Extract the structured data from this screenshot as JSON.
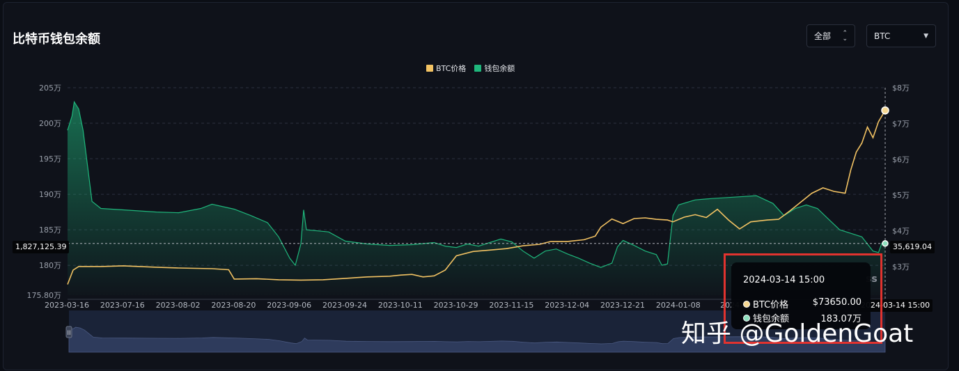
{
  "header": {
    "title": "比特币钱包余额"
  },
  "controls": {
    "range_label": "全部",
    "asset_label": "BTC"
  },
  "legend": [
    {
      "label": "BTC价格",
      "color": "#f3c363"
    },
    {
      "label": "钱包余额",
      "color": "#1fb77c"
    }
  ],
  "crosshair": {
    "left_value": "1,827,125.39",
    "right_value": "35,619.04",
    "date_value": "2024-03-14 15:00"
  },
  "tooltip": {
    "date": "2024-03-14 15:00",
    "price_label": "BTC价格",
    "price_value": "$73650.00",
    "balance_label": "钱包余额",
    "balance_value": "183.07万"
  },
  "watermark": "知乎 @GoldenGoat",
  "chart_data": {
    "type": "line",
    "x_tick_labels": [
      "2023-03-16",
      "2023-07-16",
      "2023-08-02",
      "2023-08-20",
      "2023-09-06",
      "2023-09-24",
      "2023-10-11",
      "2023-10-29",
      "2023-11-15",
      "2023-12-04",
      "2023-12-21",
      "2024-01-08",
      "2024-0"
    ],
    "y_left_ticks": [
      "205万",
      "200万",
      "195万",
      "190万",
      "185万",
      "180万",
      "175.80万"
    ],
    "y_left_values": [
      205,
      200,
      195,
      190,
      185,
      180,
      175.8
    ],
    "y_left_range": [
      175.8,
      205
    ],
    "y_right_ticks": [
      "$8万",
      "$7万",
      "$6万",
      "$5万",
      "$4万",
      "$3万"
    ],
    "y_right_values": [
      8,
      7,
      6,
      5,
      4,
      3
    ],
    "y_right_range": [
      2.2,
      8
    ],
    "x_index_range": [
      0,
      1472
    ],
    "grid": true,
    "legend_position": "top-center",
    "series": [
      {
        "name": "钱包余额",
        "axis": "left",
        "unit": "万",
        "color": "#1fb77c",
        "points": [
          [
            0,
            199
          ],
          [
            8,
            201
          ],
          [
            12,
            203
          ],
          [
            20,
            202
          ],
          [
            28,
            199
          ],
          [
            36,
            194
          ],
          [
            44,
            189
          ],
          [
            60,
            188
          ],
          [
            100,
            187.8
          ],
          [
            160,
            187.5
          ],
          [
            200,
            187.4
          ],
          [
            240,
            188
          ],
          [
            260,
            188.6
          ],
          [
            300,
            187.9
          ],
          [
            330,
            187
          ],
          [
            360,
            186
          ],
          [
            380,
            184
          ],
          [
            400,
            181
          ],
          [
            410,
            180
          ],
          [
            420,
            183
          ],
          [
            425,
            187.8
          ],
          [
            430,
            185
          ],
          [
            470,
            184.7
          ],
          [
            500,
            183.4
          ],
          [
            540,
            183
          ],
          [
            580,
            182.8
          ],
          [
            620,
            182.9
          ],
          [
            660,
            183.2
          ],
          [
            680,
            182.7
          ],
          [
            700,
            182.5
          ],
          [
            720,
            183
          ],
          [
            740,
            182.7
          ],
          [
            780,
            183.7
          ],
          [
            800,
            183.3
          ],
          [
            820,
            182
          ],
          [
            840,
            181
          ],
          [
            860,
            182
          ],
          [
            880,
            182.3
          ],
          [
            900,
            181.6
          ],
          [
            920,
            181
          ],
          [
            940,
            180.3
          ],
          [
            960,
            179.7
          ],
          [
            980,
            180.3
          ],
          [
            990,
            182.6
          ],
          [
            1000,
            183.5
          ],
          [
            1020,
            182.8
          ],
          [
            1040,
            182
          ],
          [
            1060,
            181.5
          ],
          [
            1070,
            180
          ],
          [
            1080,
            180.2
          ],
          [
            1090,
            187
          ],
          [
            1100,
            188.5
          ],
          [
            1130,
            189.2
          ],
          [
            1160,
            189.4
          ],
          [
            1200,
            189.6
          ],
          [
            1240,
            189.8
          ],
          [
            1270,
            188.7
          ],
          [
            1290,
            187
          ],
          [
            1310,
            188
          ],
          [
            1330,
            188.5
          ],
          [
            1350,
            188
          ],
          [
            1370,
            186.5
          ],
          [
            1390,
            185
          ],
          [
            1410,
            184.5
          ],
          [
            1430,
            184
          ],
          [
            1440,
            183
          ],
          [
            1450,
            182
          ],
          [
            1460,
            181.8
          ],
          [
            1466,
            183.1
          ],
          [
            1472,
            183.07
          ]
        ]
      },
      {
        "name": "BTC价格",
        "axis": "right",
        "unit": "$万",
        "color": "#f3c363",
        "points": [
          [
            0,
            2.5
          ],
          [
            10,
            2.9
          ],
          [
            20,
            3.0
          ],
          [
            60,
            3.0
          ],
          [
            100,
            3.02
          ],
          [
            160,
            2.98
          ],
          [
            200,
            2.96
          ],
          [
            260,
            2.94
          ],
          [
            290,
            2.91
          ],
          [
            300,
            2.65
          ],
          [
            340,
            2.66
          ],
          [
            380,
            2.63
          ],
          [
            420,
            2.62
          ],
          [
            460,
            2.63
          ],
          [
            500,
            2.67
          ],
          [
            540,
            2.71
          ],
          [
            580,
            2.73
          ],
          [
            600,
            2.76
          ],
          [
            620,
            2.78
          ],
          [
            640,
            2.71
          ],
          [
            660,
            2.74
          ],
          [
            680,
            2.9
          ],
          [
            700,
            3.3
          ],
          [
            730,
            3.42
          ],
          [
            760,
            3.46
          ],
          [
            790,
            3.5
          ],
          [
            820,
            3.58
          ],
          [
            850,
            3.62
          ],
          [
            870,
            3.7
          ],
          [
            900,
            3.7
          ],
          [
            930,
            3.75
          ],
          [
            950,
            3.85
          ],
          [
            960,
            4.1
          ],
          [
            980,
            4.33
          ],
          [
            1000,
            4.2
          ],
          [
            1020,
            4.34
          ],
          [
            1040,
            4.36
          ],
          [
            1060,
            4.32
          ],
          [
            1080,
            4.3
          ],
          [
            1090,
            4.25
          ],
          [
            1110,
            4.38
          ],
          [
            1130,
            4.45
          ],
          [
            1150,
            4.37
          ],
          [
            1170,
            4.6
          ],
          [
            1190,
            4.3
          ],
          [
            1210,
            4.05
          ],
          [
            1230,
            4.25
          ],
          [
            1260,
            4.3
          ],
          [
            1280,
            4.32
          ],
          [
            1300,
            4.55
          ],
          [
            1320,
            4.8
          ],
          [
            1340,
            5.05
          ],
          [
            1360,
            5.2
          ],
          [
            1380,
            5.1
          ],
          [
            1400,
            5.05
          ],
          [
            1410,
            5.7
          ],
          [
            1420,
            6.2
          ],
          [
            1430,
            6.45
          ],
          [
            1440,
            6.9
          ],
          [
            1450,
            6.6
          ],
          [
            1460,
            7.05
          ],
          [
            1472,
            7.365
          ]
        ]
      }
    ]
  }
}
